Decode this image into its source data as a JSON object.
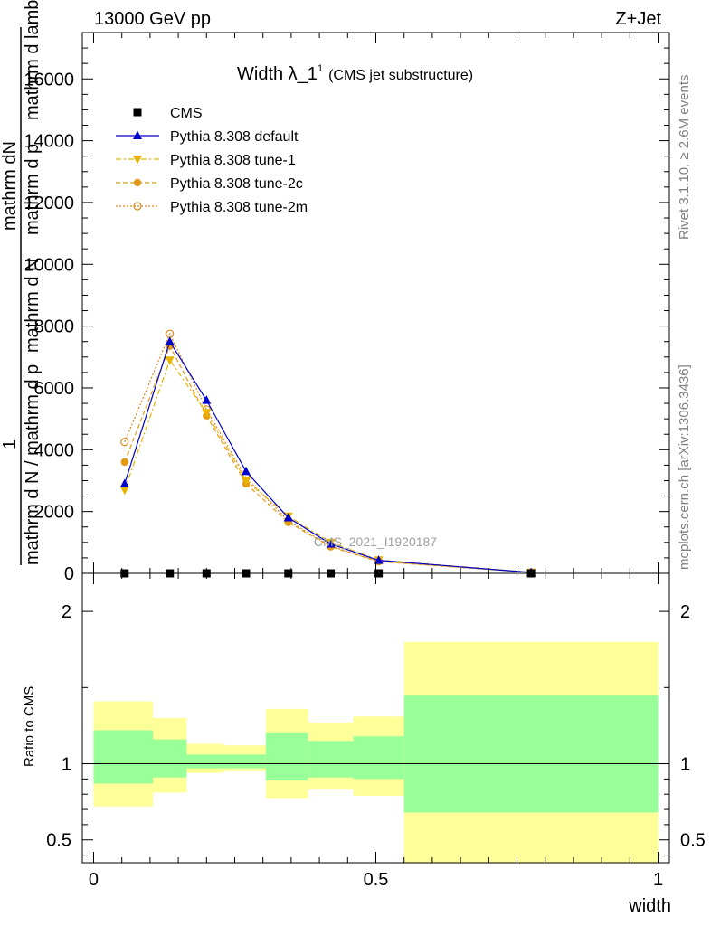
{
  "header": {
    "energy_label": "13000 GeV pp",
    "process_label": "Z+Jet"
  },
  "side_labels": {
    "rivet": "Rivet 3.1.10, ≥ 2.6M events",
    "mcplots": "mcplots.cern.ch [arXiv:1306.3436]"
  },
  "watermark": "CMS_2021_I1920187",
  "chart_data": [
    {
      "type": "line",
      "title_main": "Width λ_1",
      "title_sup": "1",
      "title_sub": "(CMS jet substructure)",
      "ylabel_parts": [
        "1",
        "mathrm d N",
        "mathrm d N / mathrm d p",
        "mathrm d p",
        "mathrm d lambda"
      ],
      "ylabel_line1": "mathrm dN",
      "ylabel_line2": "mathrm d p_Tmathrm d lambda",
      "ylabel_line3": "mathrm d N / mathrm d pmathrm d lambda",
      "ylabel_full_top": "mathrm dN",
      "ylabel_full_bottom": "mathrm d N / mathrm d p_T mathrm d lambda",
      "xlim": [
        -0.02,
        1.02
      ],
      "ylim": [
        0,
        17500
      ],
      "y_ticks": [
        0,
        2000,
        4000,
        6000,
        8000,
        10000,
        12000,
        14000,
        16000
      ],
      "y_tick_labels": [
        "0",
        "2000",
        "4000",
        "6000",
        "8000",
        "10000",
        "12000",
        "14000",
        "16000"
      ],
      "grid": false,
      "legend_position": "top-left",
      "x": [
        0.055,
        0.135,
        0.2,
        0.27,
        0.345,
        0.42,
        0.505,
        0.775
      ],
      "series": [
        {
          "name": "CMS",
          "color": "#000000",
          "marker": "square",
          "values": [
            0,
            0,
            0,
            0,
            0,
            0,
            0,
            0
          ]
        },
        {
          "name": "Pythia 8.308 default",
          "color": "#0000cc",
          "marker": "triangle-up",
          "dash": "",
          "values": [
            2900,
            7500,
            5600,
            3300,
            1800,
            950,
            420,
            30
          ]
        },
        {
          "name": "Pythia 8.308 tune-1",
          "color": "#e8b400",
          "marker": "triangle-down",
          "dash": "6,3,2,3",
          "values": [
            2700,
            6900,
            5200,
            3000,
            1850,
            1000,
            430,
            35
          ]
        },
        {
          "name": "Pythia 8.308 tune-2c",
          "color": "#e39a17",
          "marker": "circle",
          "dash": "5,3",
          "values": [
            3600,
            7350,
            5100,
            2900,
            1650,
            860,
            380,
            30
          ]
        },
        {
          "name": "Pythia 8.308 tune-2m",
          "color": "#d98a1f",
          "marker": "circle-open",
          "dash": "2,2",
          "values": [
            4250,
            7750,
            5300,
            3100,
            1700,
            880,
            390,
            30
          ]
        }
      ]
    },
    {
      "type": "area",
      "ylabel": "Ratio to CMS",
      "xlabel": "width",
      "xlim": [
        -0.02,
        1.02
      ],
      "ylim": [
        0.35,
        2.25
      ],
      "x_ticks": [
        0,
        0.5,
        1
      ],
      "x_tick_labels": [
        "0",
        "0.5",
        "1"
      ],
      "y_ticks": [
        0.5,
        1,
        2
      ],
      "y_tick_labels": [
        "0.5",
        "1",
        "2"
      ],
      "reference_line": 1,
      "bins": [
        {
          "x0": 0.0,
          "x1": 0.105,
          "stat_lo": 0.87,
          "stat_hi": 1.22,
          "tot_lo": 0.72,
          "tot_hi": 1.41
        },
        {
          "x0": 0.105,
          "x1": 0.165,
          "stat_lo": 0.91,
          "stat_hi": 1.16,
          "tot_lo": 0.81,
          "tot_hi": 1.3
        },
        {
          "x0": 0.165,
          "x1": 0.23,
          "stat_lo": 0.97,
          "stat_hi": 1.06,
          "tot_lo": 0.94,
          "tot_hi": 1.13
        },
        {
          "x0": 0.23,
          "x1": 0.305,
          "stat_lo": 0.97,
          "stat_hi": 1.06,
          "tot_lo": 0.95,
          "tot_hi": 1.12
        },
        {
          "x0": 0.305,
          "x1": 0.38,
          "stat_lo": 0.89,
          "stat_hi": 1.2,
          "tot_lo": 0.77,
          "tot_hi": 1.36
        },
        {
          "x0": 0.38,
          "x1": 0.46,
          "stat_lo": 0.91,
          "stat_hi": 1.15,
          "tot_lo": 0.83,
          "tot_hi": 1.27
        },
        {
          "x0": 0.46,
          "x1": 0.55,
          "stat_lo": 0.9,
          "stat_hi": 1.18,
          "tot_lo": 0.79,
          "tot_hi": 1.31
        },
        {
          "x0": 0.55,
          "x1": 1.0,
          "stat_lo": 0.68,
          "stat_hi": 1.45,
          "tot_lo": 0.35,
          "tot_hi": 1.8
        }
      ],
      "colors": {
        "stat": "#99ff99",
        "total": "#ffff99"
      }
    }
  ]
}
